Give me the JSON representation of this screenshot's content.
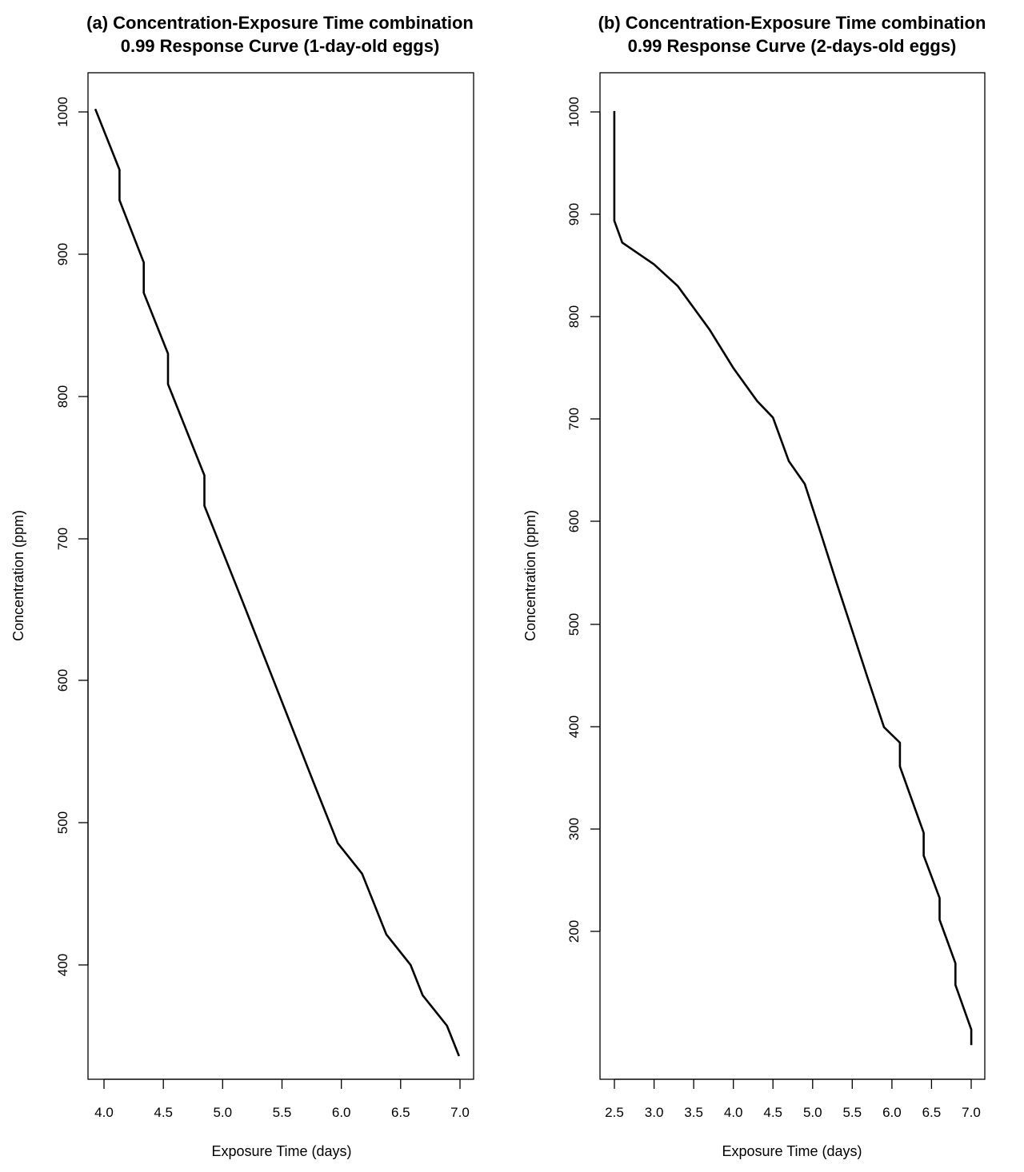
{
  "chart_data": [
    {
      "type": "line",
      "title_line1": "(a) Concentration-Exposure Time combination",
      "title_line2": "0.99 Response Curve (1-day-old eggs)",
      "xlabel": "Exposure Time (days)",
      "ylabel": "Concentration (ppm)",
      "xlim": [
        3.94,
        7.12
      ],
      "ylim": [
        330,
        1025
      ],
      "xticks": [
        "4.0",
        "4.5",
        "5.0",
        "5.5",
        "6.0",
        "6.5",
        "7.0"
      ],
      "yticks": [
        "400",
        "500",
        "600",
        "700",
        "800",
        "900",
        "1000"
      ],
      "grid": false,
      "legend": "none",
      "color": "#000000",
      "series": [
        {
          "x": [
            4.0,
            4.2,
            4.2,
            4.4,
            4.4,
            4.6,
            4.6,
            4.9,
            4.9,
            5.2,
            5.5,
            5.8,
            6.0,
            6.2,
            6.4,
            6.6,
            6.7,
            6.9,
            7.0
          ],
          "y": [
            1000,
            958,
            937,
            894,
            873,
            831,
            810,
            747,
            726,
            663,
            599,
            535,
            493,
            472,
            430,
            409,
            388,
            367,
            346
          ]
        }
      ]
    },
    {
      "type": "line",
      "title_line1": "(b) Concentration-Exposure Time combination",
      "title_line2": "0.99 Response Curve (2-days-old eggs)",
      "xlabel": "Exposure Time (days)",
      "ylabel": "Concentration (ppm)",
      "xlim": [
        2.32,
        7.17
      ],
      "ylim": [
        65,
        1037
      ],
      "xticks": [
        "2.5",
        "3.0",
        "3.5",
        "4.0",
        "4.5",
        "5.0",
        "5.5",
        "6.0",
        "6.5",
        "7.0"
      ],
      "yticks": [
        "200",
        "300",
        "400",
        "500",
        "600",
        "700",
        "800",
        "900",
        "1000"
      ],
      "grid": false,
      "legend": "none",
      "color": "#000000",
      "series": [
        {
          "x": [
            2.5,
            2.5,
            2.6,
            3.0,
            3.3,
            3.7,
            4.0,
            4.3,
            4.5,
            4.7,
            4.9,
            5.1,
            5.3,
            5.5,
            5.7,
            5.9,
            6.1,
            6.1,
            6.4,
            6.4,
            6.6,
            6.6,
            6.8,
            6.8,
            7.0,
            7.0
          ],
          "y": [
            1000,
            894,
            873,
            852,
            831,
            789,
            752,
            720,
            704,
            662,
            640,
            593,
            545,
            498,
            451,
            405,
            390,
            367,
            303,
            281,
            240,
            219,
            177,
            156,
            113,
            98
          ]
        }
      ]
    }
  ]
}
